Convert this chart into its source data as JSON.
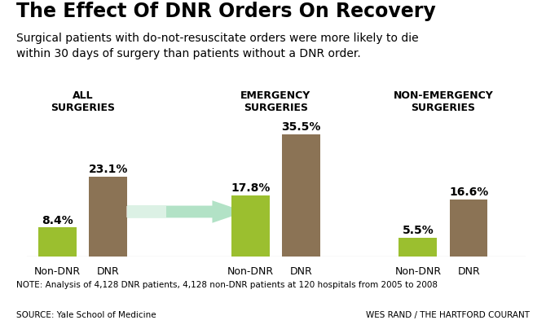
{
  "title": "The Effect Of DNR Orders On Recovery",
  "subtitle": "Surgical patients with do-not-resuscitate orders were more likely to die\nwithin 30 days of surgery than patients without a DNR order.",
  "groups": [
    {
      "label": "ALL\nSURGERIES",
      "non_dnr": 8.4,
      "dnr": 23.1
    },
    {
      "label": "EMERGENCY\nSURGERIES",
      "non_dnr": 17.8,
      "dnr": 35.5
    },
    {
      "label": "NON-EMERGENCY\nSURGERIES",
      "non_dnr": 5.5,
      "dnr": 16.6
    }
  ],
  "bar_color_green": "#9BBF2F",
  "bar_color_brown": "#8B7355",
  "arrow_color": "#AADFC0",
  "note": "NOTE: Analysis of 4,128 DNR patients, 4,128 non-DNR patients at 120 hospitals from 2005 to 2008",
  "source_left": "SOURCE: Yale School of Medicine",
  "source_right": "WES RAND / THE HARTFORD COURANT",
  "bg_color": "#FFFFFF",
  "title_fontsize": 17,
  "subtitle_fontsize": 10,
  "bar_label_fontsize": 10,
  "group_label_fontsize": 9,
  "tick_label_fontsize": 9,
  "note_fontsize": 7.5,
  "ylim": [
    0,
    40
  ],
  "group_centers": [
    0.12,
    0.5,
    0.83
  ],
  "bar_width": 0.075,
  "bar_gap": 0.025
}
